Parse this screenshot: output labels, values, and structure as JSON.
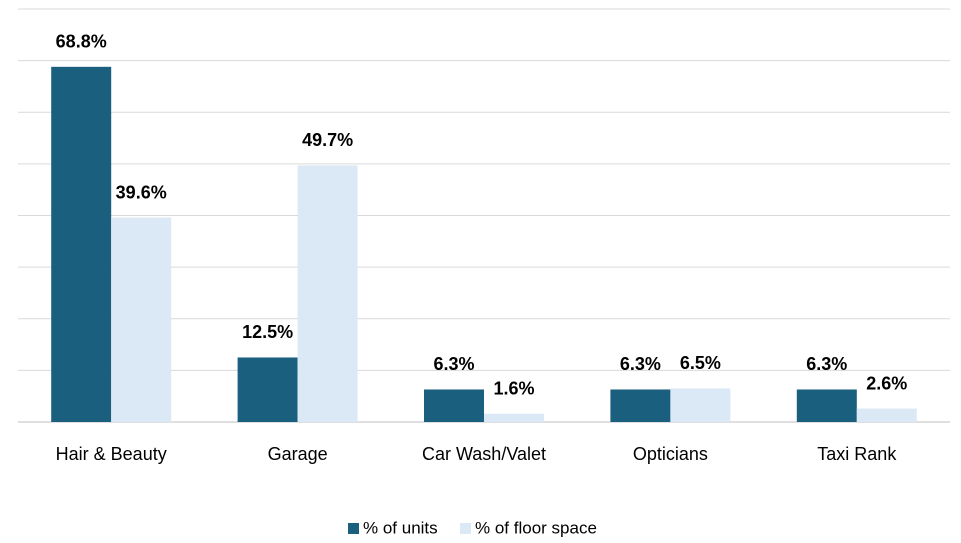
{
  "chart_data": {
    "type": "bar",
    "categories": [
      "Hair & Beauty",
      "Garage",
      "Car Wash/Valet",
      "Opticians",
      "Taxi Rank"
    ],
    "series": [
      {
        "name": "% of units",
        "color": "#1b5f7f",
        "values": [
          68.8,
          12.5,
          6.3,
          6.3,
          6.3
        ],
        "value_labels": [
          "68.8%",
          "12.5%",
          "6.3%",
          "6.3%",
          "6.3%"
        ]
      },
      {
        "name": "% of floor space",
        "color": "#dbe8f5",
        "values": [
          39.6,
          49.7,
          1.6,
          6.5,
          2.6
        ],
        "value_labels": [
          "39.6%",
          "49.7%",
          "1.6%",
          "6.5%",
          "2.6%"
        ]
      }
    ],
    "ylim": [
      0,
      80
    ],
    "yticks": [
      0,
      10,
      20,
      30,
      40,
      50,
      60,
      70,
      80
    ],
    "grid": true,
    "legend": "bottom"
  }
}
